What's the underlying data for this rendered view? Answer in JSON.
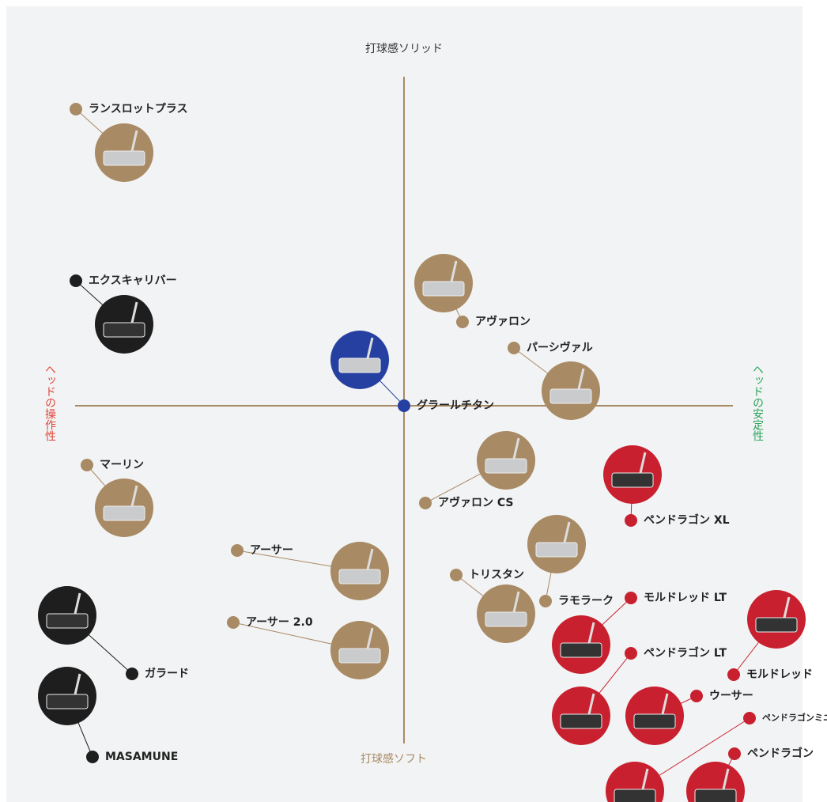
{
  "axes": {
    "top": "打球感ソリッド",
    "bottom": "打球感ソフト",
    "left": "ヘッドの操作性",
    "right": "ヘッドの安定性"
  },
  "nodes": [
    {
      "label": "ランスロットプラス"
    },
    {
      "label": "エクスキャリバー"
    },
    {
      "label": "アヴァロン"
    },
    {
      "label": "パーシヴァル"
    },
    {
      "label": "グラールチタン"
    },
    {
      "label": "マーリン"
    },
    {
      "label": "アヴァロン CS"
    },
    {
      "label": "ペンドラゴン XL"
    },
    {
      "label": "アーサー"
    },
    {
      "label": "ラモラーク"
    },
    {
      "label": "トリスタン"
    },
    {
      "label": "モルドレッド LT"
    },
    {
      "label": "モルドレッド"
    },
    {
      "label": "アーサー 2.0"
    },
    {
      "label": "ガラード"
    },
    {
      "label": "ペンドラゴン LT"
    },
    {
      "label": "ウーサー"
    },
    {
      "label": "ペンドラゴンミニ"
    },
    {
      "label": "ペンドラゴン"
    },
    {
      "label": "MASAMUNE"
    }
  ]
}
